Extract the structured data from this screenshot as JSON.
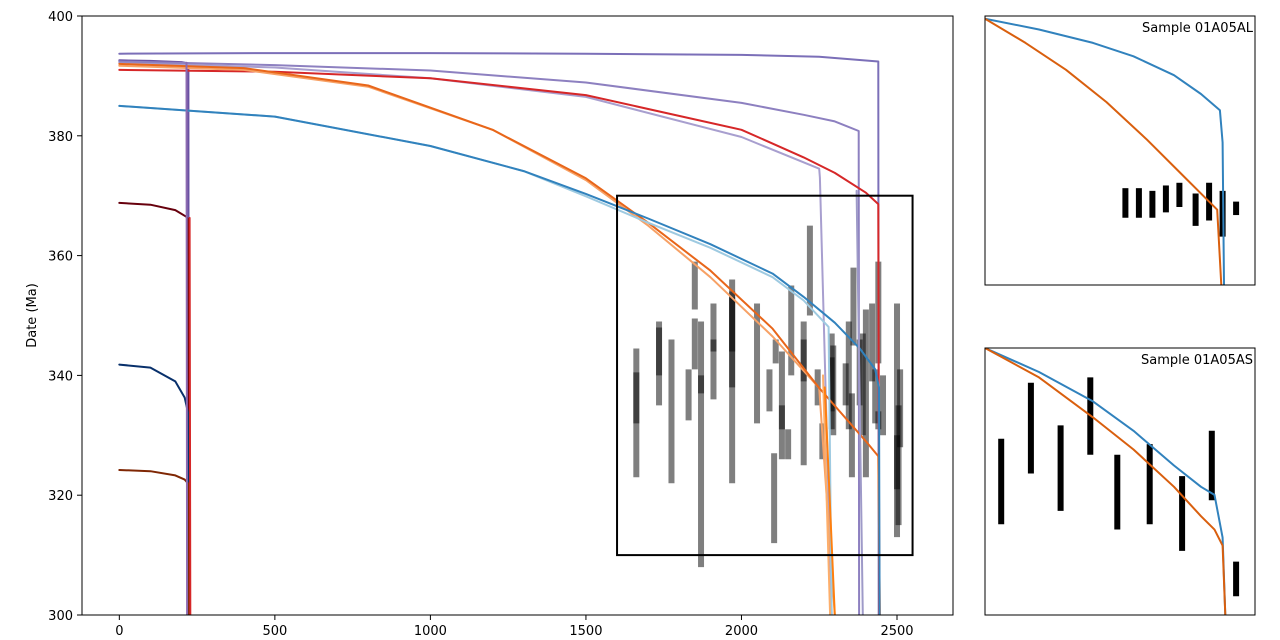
{
  "chart_data": [
    {
      "type": "line",
      "ylabel": "Date (Ma)",
      "xlim": [
        -120,
        2680
      ],
      "ylim": [
        300,
        400
      ],
      "xticks": [
        0,
        500,
        1000,
        1500,
        2000,
        2500
      ],
      "yticks": [
        300,
        320,
        340,
        360,
        380,
        400
      ],
      "series": [
        {
          "color": "#7b6fb8",
          "points": [
            [
              0,
              393.7
            ],
            [
              500,
              393.8
            ],
            [
              1000,
              393.8
            ],
            [
              1500,
              393.7
            ],
            [
              2000,
              393.5
            ],
            [
              2250,
              393.2
            ],
            [
              2440,
              392.4
            ],
            [
              2441,
              300
            ]
          ]
        },
        {
          "color": "#6a51a3",
          "points": [
            [
              0,
              392.6
            ],
            [
              100,
              392.5
            ],
            [
              200,
              392.3
            ],
            [
              222,
              392.1
            ],
            [
              223,
              300
            ]
          ]
        },
        {
          "color": "#a89fcf",
          "points": [
            [
              0,
              392.2
            ],
            [
              500,
              391.4
            ],
            [
              1000,
              389.6
            ],
            [
              1500,
              386.5
            ],
            [
              2000,
              379.8
            ],
            [
              2250,
              374.5
            ],
            [
              2252,
              373
            ],
            [
              2290,
              300
            ]
          ]
        },
        {
          "color": "#8d80c0",
          "points": [
            [
              0,
              392.4
            ],
            [
              500,
              391.8
            ],
            [
              1000,
              390.9
            ],
            [
              1500,
              388.9
            ],
            [
              2000,
              385.5
            ],
            [
              2200,
              383.5
            ],
            [
              2300,
              382.4
            ],
            [
              2377,
              380.8
            ],
            [
              2378,
              300
            ]
          ]
        },
        {
          "color": "#d62728",
          "points": [
            [
              0,
              391.0
            ],
            [
              500,
              390.7
            ],
            [
              1000,
              389.6
            ],
            [
              1500,
              386.8
            ],
            [
              2000,
              381.0
            ],
            [
              2200,
              376.4
            ],
            [
              2300,
              373.8
            ],
            [
              2400,
              370.5
            ],
            [
              2440,
              368.6
            ],
            [
              2443,
              300
            ]
          ]
        },
        {
          "color": "#f7a165",
          "points": [
            [
              0,
              391.7
            ],
            [
              400,
              391.0
            ],
            [
              800,
              388.2
            ],
            [
              1200,
              381.0
            ],
            [
              1500,
              372.6
            ],
            [
              1700,
              365.0
            ],
            [
              1900,
              356.4
            ],
            [
              2100,
              346.5
            ],
            [
              2250,
              337.9
            ],
            [
              2300,
              300
            ]
          ]
        },
        {
          "color": "#e8661a",
          "points": [
            [
              0,
              392.0
            ],
            [
              400,
              391.3
            ],
            [
              800,
              388.4
            ],
            [
              1200,
              381.0
            ],
            [
              1500,
              372.9
            ],
            [
              1700,
              365.5
            ],
            [
              1900,
              357.5
            ],
            [
              2100,
              347.8
            ],
            [
              2250,
              337.9
            ],
            [
              2400,
              329.0
            ],
            [
              2440,
              326.5
            ],
            [
              2445,
              300
            ]
          ]
        },
        {
          "color": "#9ecae1",
          "points": [
            [
              0,
              385.0
            ],
            [
              500,
              383.2
            ],
            [
              1000,
              378.3
            ],
            [
              1300,
              374.1
            ],
            [
              1500,
              369.9
            ],
            [
              1700,
              365.5
            ],
            [
              1900,
              361.3
            ],
            [
              2100,
              356.4
            ],
            [
              2200,
              352.5
            ],
            [
              2280,
              348.1
            ],
            [
              2290,
              300
            ]
          ]
        },
        {
          "color": "#3182bd",
          "points": [
            [
              0,
              385.0
            ],
            [
              500,
              383.2
            ],
            [
              1000,
              378.3
            ],
            [
              1300,
              374.1
            ],
            [
              1500,
              370.3
            ],
            [
              1700,
              366.2
            ],
            [
              1900,
              361.9
            ],
            [
              2100,
              357.0
            ],
            [
              2200,
              353.1
            ],
            [
              2300,
              348.8
            ],
            [
              2380,
              344.5
            ],
            [
              2430,
              341.0
            ],
            [
              2442,
              338.0
            ],
            [
              2444,
              300
            ]
          ]
        },
        {
          "color": "#67000d",
          "points": [
            [
              0,
              368.8
            ],
            [
              100,
              368.5
            ],
            [
              180,
              367.6
            ],
            [
              215,
              366.5
            ],
            [
              222,
              366.0
            ],
            [
              223,
              300
            ]
          ]
        },
        {
          "color": "#08306b",
          "points": [
            [
              0,
              341.8
            ],
            [
              100,
              341.3
            ],
            [
              180,
              339.0
            ],
            [
              210,
              336.3
            ],
            [
              222,
              333.5
            ],
            [
              223,
              300
            ]
          ]
        },
        {
          "color": "#7f2704",
          "points": [
            [
              0,
              324.2
            ],
            [
              100,
              324.0
            ],
            [
              180,
              323.3
            ],
            [
              210,
              322.6
            ],
            [
              222,
              321.9
            ],
            [
              223,
              300
            ]
          ]
        },
        {
          "color": "#8c6bb1",
          "points": [
            [
              216,
              392.2
            ],
            [
              218,
              300
            ]
          ]
        },
        {
          "color": "#d62728",
          "points": [
            [
              226,
              366.3
            ],
            [
              228,
              300
            ]
          ]
        },
        {
          "color": "#fdae6b",
          "points": [
            [
              2262,
              340
            ],
            [
              2285,
              300
            ]
          ]
        },
        {
          "color": "#ff7f0e",
          "points": [
            [
              2268,
              338
            ],
            [
              2300,
              300
            ]
          ]
        },
        {
          "color": "#9e9ac8",
          "points": [
            [
              2370,
              370.8
            ],
            [
              2390,
              300
            ]
          ]
        }
      ],
      "errorbars": [
        {
          "x": 1662,
          "low": 323,
          "high": 344.5
        },
        {
          "x": 1662,
          "low": 332,
          "high": 340.5
        },
        {
          "x": 1735,
          "low": 340,
          "high": 349
        },
        {
          "x": 1735,
          "low": 335,
          "high": 348
        },
        {
          "x": 1775,
          "low": 322,
          "high": 346
        },
        {
          "x": 1830,
          "low": 332.5,
          "high": 341
        },
        {
          "x": 1850,
          "low": 351,
          "high": 359
        },
        {
          "x": 1850,
          "low": 341,
          "high": 349.5
        },
        {
          "x": 1870,
          "low": 308,
          "high": 340
        },
        {
          "x": 1870,
          "low": 337,
          "high": 349
        },
        {
          "x": 1910,
          "low": 344,
          "high": 352
        },
        {
          "x": 1910,
          "low": 336,
          "high": 346
        },
        {
          "x": 1970,
          "low": 322,
          "high": 356
        },
        {
          "x": 1970,
          "low": 338,
          "high": 354
        },
        {
          "x": 1970,
          "low": 344,
          "high": 353
        },
        {
          "x": 2050,
          "low": 332,
          "high": 352
        },
        {
          "x": 2090,
          "low": 334,
          "high": 341
        },
        {
          "x": 2110,
          "low": 342,
          "high": 346
        },
        {
          "x": 2105,
          "low": 312,
          "high": 327
        },
        {
          "x": 2130,
          "low": 331,
          "high": 335
        },
        {
          "x": 2130,
          "low": 326,
          "high": 344
        },
        {
          "x": 2150,
          "low": 326,
          "high": 331
        },
        {
          "x": 2160,
          "low": 340,
          "high": 355
        },
        {
          "x": 2200,
          "low": 339,
          "high": 349
        },
        {
          "x": 2200,
          "low": 325,
          "high": 346
        },
        {
          "x": 2220,
          "low": 350,
          "high": 365
        },
        {
          "x": 2245,
          "low": 335,
          "high": 341
        },
        {
          "x": 2260,
          "low": 326,
          "high": 332
        },
        {
          "x": 2290,
          "low": 331,
          "high": 343
        },
        {
          "x": 2290,
          "low": 334,
          "high": 347
        },
        {
          "x": 2295,
          "low": 330,
          "high": 345
        },
        {
          "x": 2335,
          "low": 335,
          "high": 342
        },
        {
          "x": 2345,
          "low": 331,
          "high": 349
        },
        {
          "x": 2355,
          "low": 323,
          "high": 337
        },
        {
          "x": 2360,
          "low": 345,
          "high": 358
        },
        {
          "x": 2380,
          "low": 335,
          "high": 346
        },
        {
          "x": 2390,
          "low": 330,
          "high": 347
        },
        {
          "x": 2400,
          "low": 323,
          "high": 351
        },
        {
          "x": 2420,
          "low": 339,
          "high": 352
        },
        {
          "x": 2430,
          "low": 332,
          "high": 341
        },
        {
          "x": 2440,
          "low": 342,
          "high": 359
        },
        {
          "x": 2440,
          "low": 331,
          "high": 334
        },
        {
          "x": 2455,
          "low": 330,
          "high": 340
        },
        {
          "x": 2500,
          "low": 313,
          "high": 352
        },
        {
          "x": 2505,
          "low": 315,
          "high": 335
        },
        {
          "x": 2500,
          "low": 321,
          "high": 330
        },
        {
          "x": 2510,
          "low": 328,
          "high": 341
        }
      ],
      "zoom_box": {
        "x": [
          1600,
          2550
        ],
        "y": [
          310,
          370
        ]
      }
    },
    {
      "type": "line",
      "title": "Sample 01A05AL",
      "xlim": [
        0,
        100
      ],
      "ylim": [
        0,
        100
      ],
      "series": [
        {
          "color": "#3182bd",
          "points": [
            [
              0,
              99
            ],
            [
              20,
              95
            ],
            [
              40,
              90
            ],
            [
              55,
              85
            ],
            [
              70,
              78
            ],
            [
              80,
              71
            ],
            [
              87,
              65
            ],
            [
              88,
              53
            ],
            [
              88.5,
              0
            ]
          ]
        },
        {
          "color": "#d95f0e",
          "points": [
            [
              0,
              99
            ],
            [
              15,
              90
            ],
            [
              30,
              80
            ],
            [
              45,
              68
            ],
            [
              60,
              54
            ],
            [
              72,
              42
            ],
            [
              82,
              32
            ],
            [
              86,
              28
            ],
            [
              87.5,
              0
            ]
          ]
        }
      ],
      "errorbars": [
        {
          "x": 52,
          "low": 25,
          "high": 36
        },
        {
          "x": 57,
          "low": 25,
          "high": 36
        },
        {
          "x": 62,
          "low": 25,
          "high": 35
        },
        {
          "x": 67,
          "low": 27,
          "high": 37
        },
        {
          "x": 72,
          "low": 29,
          "high": 38
        },
        {
          "x": 78,
          "low": 22,
          "high": 34
        },
        {
          "x": 83,
          "low": 24,
          "high": 38
        },
        {
          "x": 88,
          "low": 18,
          "high": 35
        },
        {
          "x": 93,
          "low": 26,
          "high": 31
        }
      ]
    },
    {
      "type": "line",
      "title": "Sample 01A05AS",
      "xlim": [
        0,
        100
      ],
      "ylim": [
        0,
        100
      ],
      "series": [
        {
          "color": "#3182bd",
          "points": [
            [
              0,
              100
            ],
            [
              20,
              91
            ],
            [
              40,
              80
            ],
            [
              55,
              69
            ],
            [
              70,
              56
            ],
            [
              80,
              48
            ],
            [
              85,
              45
            ],
            [
              88,
              29
            ],
            [
              89,
              0
            ]
          ]
        },
        {
          "color": "#d95f0e",
          "points": [
            [
              0,
              100
            ],
            [
              20,
              89
            ],
            [
              40,
              74
            ],
            [
              55,
              62
            ],
            [
              70,
              48
            ],
            [
              80,
              37
            ],
            [
              85,
              32
            ],
            [
              88,
              26
            ],
            [
              89,
              0
            ]
          ]
        }
      ],
      "errorbars": [
        {
          "x": 6,
          "low": 34,
          "high": 66
        },
        {
          "x": 17,
          "low": 53,
          "high": 87
        },
        {
          "x": 28,
          "low": 39,
          "high": 71
        },
        {
          "x": 39,
          "low": 60,
          "high": 89
        },
        {
          "x": 49,
          "low": 32,
          "high": 60
        },
        {
          "x": 61,
          "low": 34,
          "high": 64
        },
        {
          "x": 73,
          "low": 24,
          "high": 52
        },
        {
          "x": 84,
          "low": 43,
          "high": 69
        },
        {
          "x": 93,
          "low": 7,
          "high": 20
        }
      ]
    }
  ]
}
